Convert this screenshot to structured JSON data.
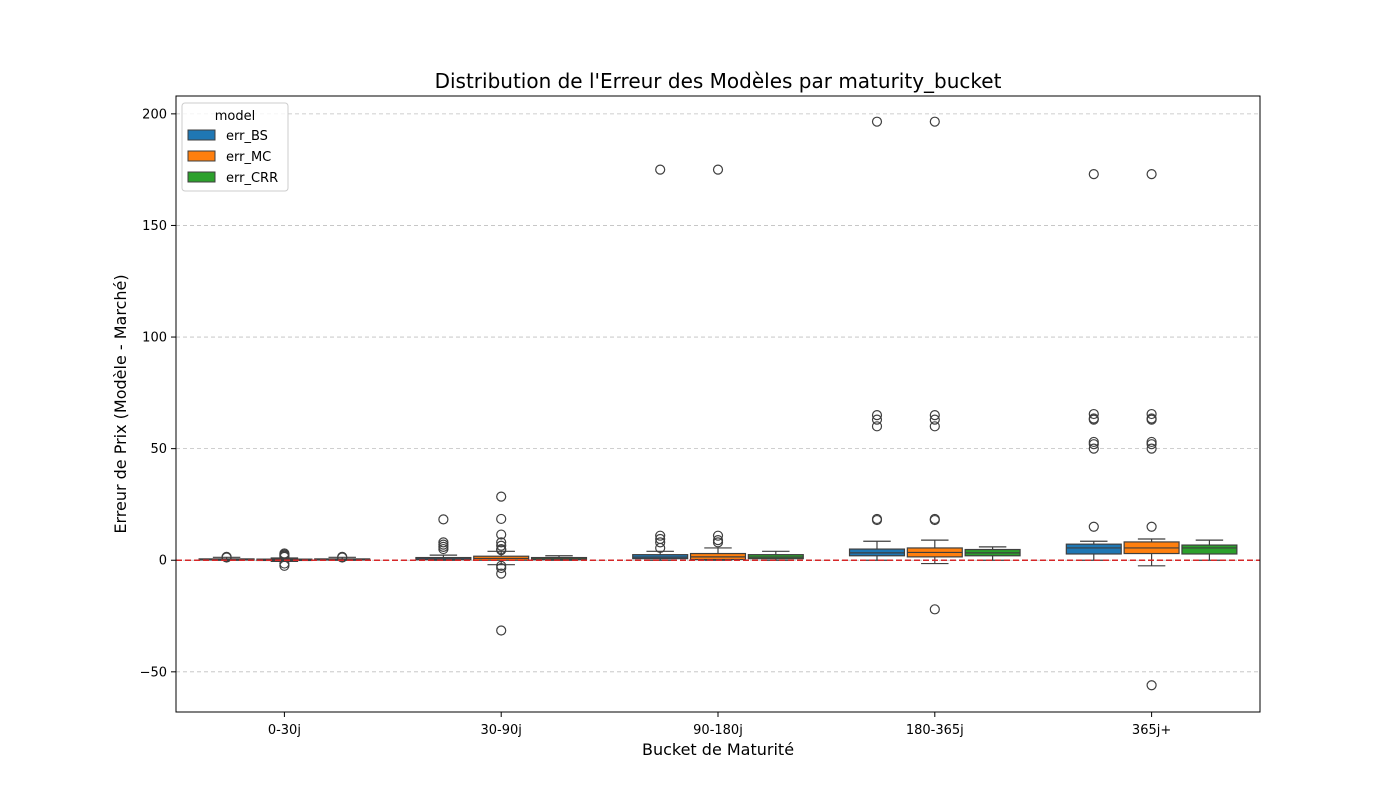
{
  "chart_data": {
    "type": "boxplot",
    "title": "Distribution de l'Erreur des Modèles par maturity_bucket",
    "xlabel": "Bucket de Maturité",
    "ylabel": "Erreur de Prix (Modèle - Marché)",
    "ylim": [
      -68,
      208
    ],
    "yticks": [
      -50,
      0,
      50,
      100,
      150,
      200
    ],
    "grid": "y-dashed",
    "legend": {
      "title": "model",
      "position": "top-left"
    },
    "reference_line": {
      "y": 0,
      "color": "#d62728",
      "style": "dashed"
    },
    "categories": [
      "0-30j",
      "30-90j",
      "90-180j",
      "180-365j",
      "365j+"
    ],
    "series": [
      {
        "name": "err_BS",
        "color": "#1f77b4",
        "boxes": [
          {
            "whislo": 0.0,
            "q1": 0.1,
            "med": 0.3,
            "q3": 0.6,
            "whishi": 1.3,
            "fliers": [
              1.5,
              1.2
            ]
          },
          {
            "whislo": 0.0,
            "q1": 0.2,
            "med": 0.6,
            "q3": 1.2,
            "whishi": 2.3,
            "fliers": [
              18.3,
              8.0,
              7.0,
              6.0,
              5.0
            ]
          },
          {
            "whislo": 0.0,
            "q1": 0.7,
            "med": 1.4,
            "q3": 2.5,
            "whishi": 4.0,
            "fliers": [
              175.0,
              11.0,
              9.5,
              8.0,
              5.5
            ]
          },
          {
            "whislo": 0.0,
            "q1": 2.0,
            "med": 3.3,
            "q3": 5.0,
            "whishi": 8.5,
            "fliers": [
              196.5,
              65.0,
              63.0,
              60.0,
              18.5,
              18.0
            ]
          },
          {
            "whislo": 0.0,
            "q1": 2.8,
            "med": 5.5,
            "q3": 7.2,
            "whishi": 8.5,
            "fliers": [
              173.0,
              65.5,
              63.5,
              63.0,
              53.0,
              52.0,
              50.0,
              15.0
            ]
          }
        ]
      },
      {
        "name": "err_MC",
        "color": "#ff7f0e",
        "boxes": [
          {
            "whislo": -0.5,
            "q1": -0.1,
            "med": 0.1,
            "q3": 0.5,
            "whishi": 1.0,
            "fliers": [
              3.0,
              2.5,
              2.0,
              1.5,
              -1.5,
              -2.5
            ]
          },
          {
            "whislo": -2.0,
            "q1": 0.0,
            "med": 0.8,
            "q3": 1.8,
            "whishi": 4.0,
            "fliers": [
              28.5,
              18.5,
              11.5,
              8.0,
              6.5,
              5.0,
              4.5,
              -2.5,
              -3.5,
              -6.0,
              -31.5
            ]
          },
          {
            "whislo": 0.0,
            "q1": 0.3,
            "med": 1.5,
            "q3": 3.0,
            "whishi": 5.5,
            "fliers": [
              175.0,
              11.0,
              9.0,
              8.0
            ]
          },
          {
            "whislo": -1.5,
            "q1": 1.5,
            "med": 3.5,
            "q3": 5.5,
            "whishi": 9.0,
            "fliers": [
              196.5,
              65.0,
              63.0,
              60.0,
              18.5,
              18.0,
              -22.0
            ]
          },
          {
            "whislo": -2.5,
            "q1": 3.0,
            "med": 5.5,
            "q3": 8.2,
            "whishi": 9.5,
            "fliers": [
              173.0,
              65.5,
              63.5,
              63.0,
              53.0,
              52.0,
              50.0,
              15.0,
              -56.0
            ]
          }
        ]
      },
      {
        "name": "err_CRR",
        "color": "#2ca02c",
        "boxes": [
          {
            "whislo": 0.0,
            "q1": 0.1,
            "med": 0.3,
            "q3": 0.6,
            "whishi": 1.3,
            "fliers": [
              1.5,
              1.2
            ]
          },
          {
            "whislo": 0.0,
            "q1": 0.2,
            "med": 0.6,
            "q3": 1.2,
            "whishi": 2.0,
            "fliers": []
          },
          {
            "whislo": 0.0,
            "q1": 0.7,
            "med": 1.4,
            "q3": 2.5,
            "whishi": 4.0,
            "fliers": []
          },
          {
            "whislo": 0.0,
            "q1": 2.0,
            "med": 3.3,
            "q3": 4.8,
            "whishi": 6.0,
            "fliers": []
          },
          {
            "whislo": 0.0,
            "q1": 2.8,
            "med": 5.5,
            "q3": 6.8,
            "whishi": 9.0,
            "fliers": []
          }
        ]
      }
    ]
  }
}
